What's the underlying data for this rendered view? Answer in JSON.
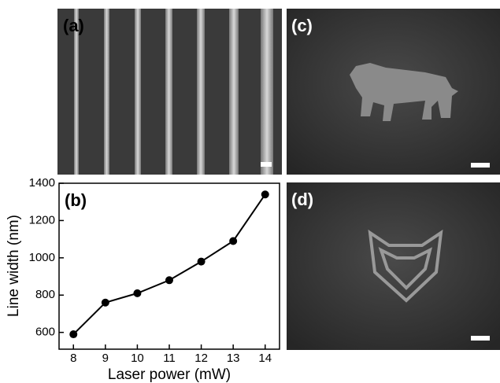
{
  "panels": {
    "a": {
      "label": "(a)"
    },
    "c": {
      "label": "(c)"
    },
    "d": {
      "label": "(d)"
    }
  },
  "chart_data": {
    "type": "line",
    "panel_label": "(b)",
    "xlabel": "Laser power (mW)",
    "ylabel": "Line width (nm)",
    "x": [
      8,
      9,
      10,
      11,
      12,
      13,
      14
    ],
    "series": [
      {
        "color": "#000000",
        "values": [
          590,
          760,
          810,
          880,
          980,
          1090,
          1340
        ]
      }
    ],
    "xlim": [
      7.55,
      14.45
    ],
    "ylim": [
      510,
      1400
    ],
    "xticks": [
      8,
      9,
      10,
      11,
      12,
      13,
      14
    ],
    "yticks": [
      600,
      800,
      1000,
      1200,
      1400
    ]
  }
}
